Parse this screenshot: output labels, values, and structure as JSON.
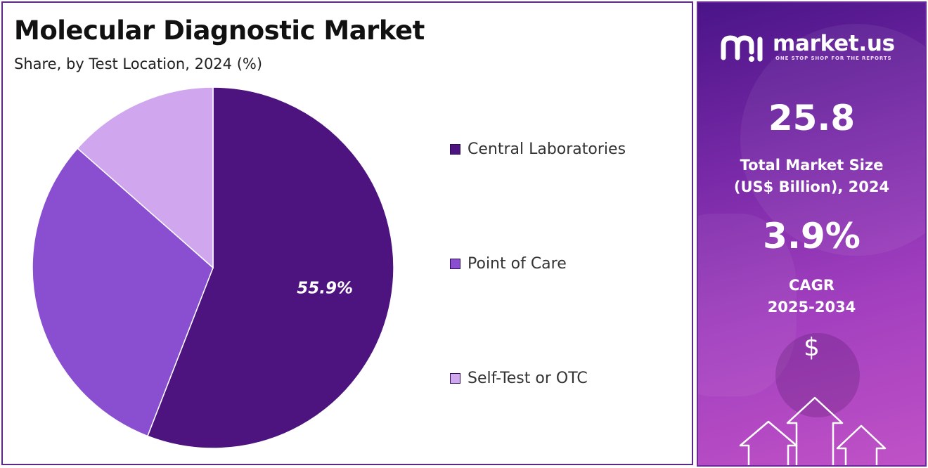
{
  "chart_data": {
    "type": "pie",
    "title": "Molecular Diagnostic Market",
    "subtitle": "Share, by Test Location, 2024 (%)",
    "categories": [
      "Central Laboratories",
      "Point of Care",
      "Self-Test or OTC"
    ],
    "values": [
      55.9,
      30.6,
      13.5
    ],
    "colors": [
      "#4d1480",
      "#8a4fd1",
      "#d0a6ee"
    ],
    "data_labels": [
      "55.9%",
      "",
      ""
    ],
    "legend_position": "right"
  },
  "sidebar": {
    "brand_name": "market.us",
    "brand_tagline": "ONE STOP SHOP FOR THE REPORTS",
    "market_size_value": "25.8",
    "market_size_label_line1": "Total Market Size",
    "market_size_label_line2": "(US$ Billion), 2024",
    "cagr_value": "3.9%",
    "cagr_label_line1": "CAGR",
    "cagr_label_line2": "2025-2034",
    "currency_symbol": "$"
  }
}
